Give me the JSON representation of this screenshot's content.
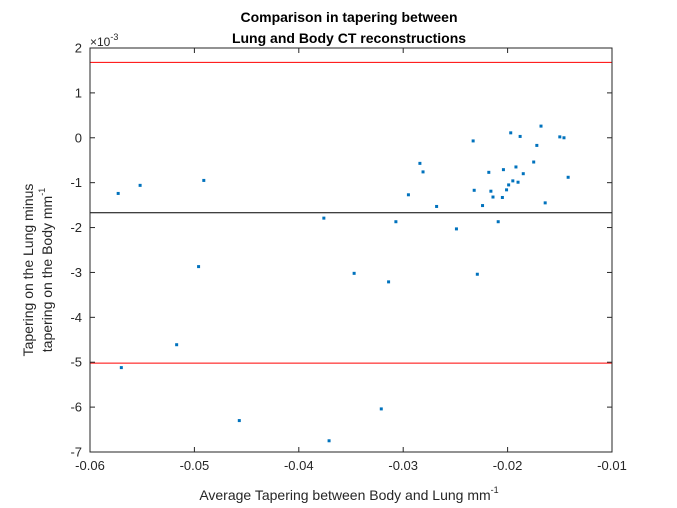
{
  "chart_data": {
    "type": "scatter",
    "title": [
      "Comparison in tapering between",
      "Lung and Body CT reconstructions"
    ],
    "xlabel": {
      "text": "Average Tapering between Body and Lung mm",
      "sup": "-1"
    },
    "ylabel": {
      "line1": "Tapering on the Lung minus",
      "line2": "tapering on the Body mm",
      "sup": "-1"
    },
    "y_exponent": {
      "base": "×10",
      "power": "-3"
    },
    "xlim": [
      -0.06,
      -0.01
    ],
    "ylim": [
      -7,
      2
    ],
    "xticks": [
      -0.06,
      -0.05,
      -0.04,
      -0.03,
      -0.02,
      -0.01
    ],
    "xtick_labels": [
      "-0.06",
      "-0.05",
      "-0.04",
      "-0.03",
      "-0.02",
      "-0.01"
    ],
    "yticks": [
      -7,
      -6,
      -5,
      -4,
      -3,
      -2,
      -1,
      0,
      1,
      2
    ],
    "ytick_labels": [
      "-7",
      "-6",
      "-5",
      "-4",
      "-3",
      "-2",
      "-1",
      "0",
      "1",
      "2"
    ],
    "grid": false,
    "colors": {
      "points": "#0072bd",
      "mean_line": "#000000",
      "limit_lines": "#ff0000",
      "axes": "#262626"
    },
    "reference_lines": [
      {
        "name": "upper-limit",
        "y": 1.68,
        "color": "#ff0000"
      },
      {
        "name": "mean",
        "y": -1.67,
        "color": "#000000"
      },
      {
        "name": "lower-limit",
        "y": -5.02,
        "color": "#ff0000"
      }
    ],
    "points": [
      [
        -0.0573,
        -1.24
      ],
      [
        -0.0552,
        -1.06
      ],
      [
        -0.0491,
        -0.95
      ],
      [
        -0.0496,
        -2.87
      ],
      [
        -0.0517,
        -4.61
      ],
      [
        -0.057,
        -5.12
      ],
      [
        -0.0457,
        -6.3
      ],
      [
        -0.0376,
        -1.79
      ],
      [
        -0.0371,
        -6.75
      ],
      [
        -0.0347,
        -3.02
      ],
      [
        -0.0321,
        -6.04
      ],
      [
        -0.0314,
        -3.21
      ],
      [
        -0.0307,
        -1.87
      ],
      [
        -0.0295,
        -1.27
      ],
      [
        -0.0284,
        -0.57
      ],
      [
        -0.0281,
        -0.76
      ],
      [
        -0.0268,
        -1.53
      ],
      [
        -0.0249,
        -2.03
      ],
      [
        -0.0233,
        -0.07
      ],
      [
        -0.0232,
        -1.17
      ],
      [
        -0.0229,
        -3.04
      ],
      [
        -0.0224,
        -1.51
      ],
      [
        -0.0218,
        -0.77
      ],
      [
        -0.0216,
        -1.19
      ],
      [
        -0.0214,
        -1.32
      ],
      [
        -0.0209,
        -1.87
      ],
      [
        -0.0205,
        -1.33
      ],
      [
        -0.0204,
        -0.71
      ],
      [
        -0.0201,
        -1.16
      ],
      [
        -0.0199,
        -1.05
      ],
      [
        -0.0197,
        0.11
      ],
      [
        -0.0195,
        -0.96
      ],
      [
        -0.0192,
        -0.65
      ],
      [
        -0.019,
        -0.99
      ],
      [
        -0.0188,
        0.03
      ],
      [
        -0.0185,
        -0.8
      ],
      [
        -0.0175,
        -0.54
      ],
      [
        -0.0172,
        -0.17
      ],
      [
        -0.0168,
        0.26
      ],
      [
        -0.0164,
        -1.45
      ],
      [
        -0.015,
        0.02
      ],
      [
        -0.0146,
        0.0
      ],
      [
        -0.0142,
        -0.88
      ]
    ]
  }
}
